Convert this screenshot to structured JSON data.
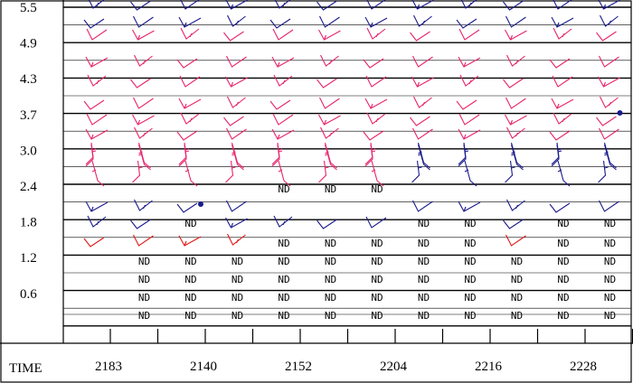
{
  "chart_data": {
    "type": "scatter",
    "title": "",
    "xlabel": "TIME",
    "ylabel": "",
    "y_ticks": [
      "5.5",
      "4.9",
      "4.3",
      "3.7",
      "3.0",
      "2.4",
      "1.8",
      "1.2",
      "0.6"
    ],
    "x_ticks": [
      "2183",
      "2140",
      "2152",
      "2204",
      "2216",
      "2228"
    ],
    "no_data_label": "ND",
    "colors": {
      "upper_barbs": "#e8246c",
      "lower_barbs": "#e8246c",
      "blue_barbs": "#1a1a8c",
      "red_barbs": "#e01818"
    },
    "columns": 12,
    "levels": 17,
    "barb_rows": [
      {
        "y": 5.6,
        "color": "#1a1a8c"
      },
      {
        "y": 5.4,
        "color": "#1a1a8c"
      },
      {
        "y": 5.15,
        "color": "#e8246c"
      },
      {
        "y": 4.8,
        "color": "#e8246c"
      },
      {
        "y": 4.55,
        "color": "#e8246c"
      },
      {
        "y": 4.2,
        "color": "#e8246c"
      },
      {
        "y": 3.95,
        "color": "#e8246c"
      },
      {
        "y": 3.65,
        "color": "#e8246c"
      },
      {
        "y": 3.35,
        "color": "#e8246c"
      },
      {
        "y": 3.05,
        "color": "#e8246c"
      },
      {
        "y": 2.8,
        "color": "#e8246c"
      },
      {
        "y": 2.2,
        "color": "#1a1a8c"
      },
      {
        "y": 1.8,
        "color": "#1a1a8c"
      },
      {
        "y": 1.55,
        "color": "#e01818"
      }
    ],
    "nd_cells": [
      {
        "col": 5,
        "y": 2.4
      },
      {
        "col": 6,
        "y": 2.4
      },
      {
        "col": 7,
        "y": 2.4
      },
      {
        "col": 3,
        "y": 1.8
      },
      {
        "col": 8,
        "y": 1.8
      },
      {
        "col": 9,
        "y": 1.8
      },
      {
        "col": 11,
        "y": 1.8
      },
      {
        "col": 12,
        "y": 1.8
      },
      {
        "col": 5,
        "y": 1.55
      },
      {
        "col": 6,
        "y": 1.55
      },
      {
        "col": 7,
        "y": 1.55
      },
      {
        "col": 8,
        "y": 1.55
      },
      {
        "col": 9,
        "y": 1.55
      },
      {
        "col": 11,
        "y": 1.55
      },
      {
        "col": 12,
        "y": 1.55
      },
      {
        "col": 2,
        "y": 1.2
      },
      {
        "col": 3,
        "y": 1.2
      },
      {
        "col": 4,
        "y": 1.2
      },
      {
        "col": 5,
        "y": 1.2
      },
      {
        "col": 6,
        "y": 1.2
      },
      {
        "col": 7,
        "y": 1.2
      },
      {
        "col": 8,
        "y": 1.2
      },
      {
        "col": 9,
        "y": 1.2
      },
      {
        "col": 10,
        "y": 1.2
      },
      {
        "col": 11,
        "y": 1.2
      },
      {
        "col": 12,
        "y": 1.2
      },
      {
        "col": 2,
        "y": 0.9
      },
      {
        "col": 3,
        "y": 0.9
      },
      {
        "col": 4,
        "y": 0.9
      },
      {
        "col": 5,
        "y": 0.9
      },
      {
        "col": 6,
        "y": 0.9
      },
      {
        "col": 7,
        "y": 0.9
      },
      {
        "col": 8,
        "y": 0.9
      },
      {
        "col": 9,
        "y": 0.9
      },
      {
        "col": 10,
        "y": 0.9
      },
      {
        "col": 11,
        "y": 0.9
      },
      {
        "col": 12,
        "y": 0.9
      },
      {
        "col": 2,
        "y": 0.6
      },
      {
        "col": 3,
        "y": 0.6
      },
      {
        "col": 4,
        "y": 0.6
      },
      {
        "col": 5,
        "y": 0.6
      },
      {
        "col": 6,
        "y": 0.6
      },
      {
        "col": 7,
        "y": 0.6
      },
      {
        "col": 8,
        "y": 0.6
      },
      {
        "col": 9,
        "y": 0.6
      },
      {
        "col": 10,
        "y": 0.6
      },
      {
        "col": 11,
        "y": 0.6
      },
      {
        "col": 12,
        "y": 0.6
      },
      {
        "col": 2,
        "y": 0.35
      },
      {
        "col": 3,
        "y": 0.35
      },
      {
        "col": 4,
        "y": 0.35
      },
      {
        "col": 5,
        "y": 0.35
      },
      {
        "col": 6,
        "y": 0.35
      },
      {
        "col": 7,
        "y": 0.35
      },
      {
        "col": 8,
        "y": 0.35
      },
      {
        "col": 9,
        "y": 0.35
      },
      {
        "col": 10,
        "y": 0.35
      },
      {
        "col": 11,
        "y": 0.35
      },
      {
        "col": 12,
        "y": 0.35
      }
    ],
    "markers": [
      {
        "col": 3,
        "y": 2.05,
        "color": "#1a1a8c"
      },
      {
        "col": 12,
        "y": 3.65,
        "color": "#1a1a8c"
      }
    ],
    "grid": true
  }
}
